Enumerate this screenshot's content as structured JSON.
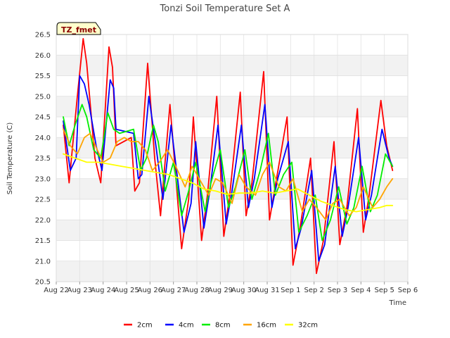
{
  "chart_data": {
    "type": "line",
    "title": "Tonzi Soil Temperature Set A",
    "xlabel": "Time",
    "ylabel": "Soil Temperature (C)",
    "tag": "TZ_fmet",
    "ylim": [
      20.5,
      26.5
    ],
    "yticks": [
      "20.5",
      "21.0",
      "21.5",
      "22.0",
      "22.5",
      "23.0",
      "23.5",
      "24.0",
      "24.5",
      "25.0",
      "25.5",
      "26.0",
      "26.5"
    ],
    "xlim": [
      0,
      15
    ],
    "xticks": [
      "Aug 22",
      "Aug 23",
      "Aug 24",
      "Aug 25",
      "Aug 26",
      "Aug 27",
      "Aug 28",
      "Aug 29",
      "Aug 30",
      "Aug 31",
      "Sep 1",
      "Sep 2",
      "Sep 3",
      "Sep 4",
      "Sep 5",
      "Sep 6"
    ],
    "grid": true,
    "legend_position": "bottom",
    "series": [
      {
        "name": "2cm",
        "color": "#ff0000",
        "x": [
          0.3,
          0.55,
          0.9,
          1.15,
          1.3,
          1.65,
          1.9,
          2.25,
          2.4,
          2.55,
          3.2,
          3.35,
          3.55,
          3.9,
          4.2,
          4.45,
          4.85,
          5.35,
          5.65,
          5.85,
          6.2,
          6.45,
          6.85,
          7.15,
          7.4,
          7.85,
          8.1,
          8.35,
          8.85,
          9.1,
          9.4,
          9.85,
          10.1,
          10.4,
          10.85,
          11.1,
          11.4,
          11.85,
          12.1,
          12.4,
          12.85,
          13.1,
          13.35,
          13.85,
          14.1,
          14.35
        ],
        "y": [
          24.3,
          22.9,
          25.0,
          26.4,
          25.8,
          23.5,
          22.9,
          26.2,
          25.7,
          23.8,
          24.0,
          22.7,
          22.9,
          25.8,
          23.5,
          22.1,
          24.8,
          21.3,
          22.5,
          24.5,
          21.5,
          22.6,
          25.0,
          21.6,
          22.6,
          25.1,
          22.1,
          22.9,
          25.6,
          22.0,
          23.0,
          24.5,
          20.9,
          21.8,
          23.5,
          20.7,
          21.5,
          23.9,
          21.4,
          22.3,
          24.7,
          21.7,
          22.6,
          24.9,
          23.8,
          23.2
        ]
      },
      {
        "name": "4cm",
        "color": "#0000ff",
        "x": [
          0.3,
          0.6,
          0.85,
          1.0,
          1.2,
          1.4,
          1.7,
          1.95,
          2.3,
          2.45,
          2.55,
          3.3,
          3.5,
          3.65,
          3.95,
          4.25,
          4.55,
          4.9,
          5.45,
          5.75,
          5.95,
          6.3,
          6.55,
          6.9,
          7.25,
          7.5,
          7.9,
          8.2,
          8.45,
          8.9,
          9.2,
          9.45,
          9.9,
          10.2,
          10.45,
          10.9,
          11.2,
          11.45,
          11.9,
          12.2,
          12.45,
          12.9,
          13.2,
          13.45,
          13.9,
          14.2,
          14.35
        ],
        "y": [
          24.4,
          23.2,
          23.5,
          25.5,
          25.3,
          24.8,
          23.8,
          23.2,
          25.4,
          25.2,
          24.2,
          24.1,
          23.0,
          23.1,
          25.0,
          23.8,
          22.5,
          24.3,
          21.7,
          22.4,
          23.9,
          21.8,
          22.7,
          24.3,
          21.9,
          22.7,
          24.3,
          22.3,
          23.0,
          24.8,
          22.3,
          23.0,
          23.9,
          21.3,
          21.8,
          23.2,
          21.0,
          21.4,
          23.3,
          21.6,
          22.3,
          24.0,
          22.0,
          22.6,
          24.2,
          23.5,
          23.3
        ]
      },
      {
        "name": "8cm",
        "color": "#00ee00",
        "x": [
          0.3,
          0.55,
          0.8,
          1.1,
          1.3,
          1.6,
          1.9,
          2.2,
          2.45,
          2.7,
          3.3,
          3.6,
          3.85,
          4.15,
          4.35,
          4.65,
          5.0,
          5.35,
          5.65,
          5.95,
          6.35,
          6.6,
          7.0,
          7.35,
          7.65,
          8.05,
          8.35,
          8.7,
          9.05,
          9.35,
          9.7,
          10.05,
          10.35,
          10.7,
          11.05,
          11.35,
          11.7,
          12.05,
          12.4,
          12.7,
          13.05,
          13.4,
          13.7,
          14.05,
          14.35
        ],
        "y": [
          24.5,
          23.8,
          24.3,
          24.8,
          24.5,
          23.7,
          23.5,
          24.6,
          24.2,
          24.1,
          24.2,
          23.2,
          23.5,
          24.3,
          23.9,
          22.7,
          23.4,
          22.1,
          22.7,
          23.4,
          22.2,
          22.9,
          23.7,
          22.3,
          22.8,
          23.7,
          22.5,
          23.2,
          24.1,
          22.6,
          23.1,
          23.4,
          21.7,
          22.1,
          22.6,
          21.5,
          22.0,
          22.8,
          21.9,
          22.3,
          23.3,
          22.2,
          22.6,
          23.6,
          23.3
        ]
      },
      {
        "name": "16cm",
        "color": "#ffa500",
        "x": [
          0.3,
          0.6,
          0.9,
          1.2,
          1.45,
          1.75,
          2.0,
          2.3,
          2.6,
          2.9,
          3.2,
          3.5,
          3.8,
          4.1,
          4.4,
          4.75,
          5.1,
          5.5,
          5.8,
          6.1,
          6.5,
          6.8,
          7.1,
          7.5,
          7.8,
          8.1,
          8.5,
          8.8,
          9.1,
          9.5,
          9.8,
          10.1,
          10.5,
          10.8,
          11.1,
          11.5,
          11.8,
          12.1,
          12.5,
          12.8,
          13.1,
          13.5,
          13.8,
          14.1,
          14.35
        ],
        "y": [
          24.2,
          23.8,
          23.6,
          24.0,
          24.1,
          23.7,
          23.4,
          23.5,
          23.9,
          24.0,
          23.9,
          23.9,
          23.7,
          23.2,
          23.4,
          23.7,
          23.3,
          22.8,
          23.3,
          23.0,
          22.6,
          23.0,
          22.9,
          22.4,
          23.1,
          22.8,
          22.6,
          23.1,
          23.4,
          22.8,
          22.7,
          23.0,
          22.2,
          22.5,
          22.3,
          22.0,
          22.4,
          22.5,
          22.1,
          22.3,
          22.8,
          22.3,
          22.5,
          22.8,
          23.0
        ]
      },
      {
        "name": "32cm",
        "color": "#ffff00",
        "x": [
          0.3,
          0.8,
          1.3,
          1.8,
          2.3,
          2.8,
          3.3,
          3.8,
          4.3,
          4.8,
          5.3,
          5.8,
          6.3,
          6.8,
          7.3,
          7.8,
          8.3,
          8.8,
          9.3,
          9.8,
          10.3,
          10.8,
          11.3,
          11.8,
          12.3,
          12.8,
          13.3,
          13.8,
          14.1,
          14.35
        ],
        "y": [
          23.6,
          23.5,
          23.4,
          23.4,
          23.35,
          23.3,
          23.25,
          23.2,
          23.15,
          23.1,
          23.0,
          22.9,
          22.75,
          22.7,
          22.62,
          22.65,
          22.65,
          22.7,
          22.65,
          22.7,
          22.75,
          22.6,
          22.45,
          22.35,
          22.25,
          22.2,
          22.25,
          22.3,
          22.35,
          22.35
        ]
      }
    ]
  }
}
